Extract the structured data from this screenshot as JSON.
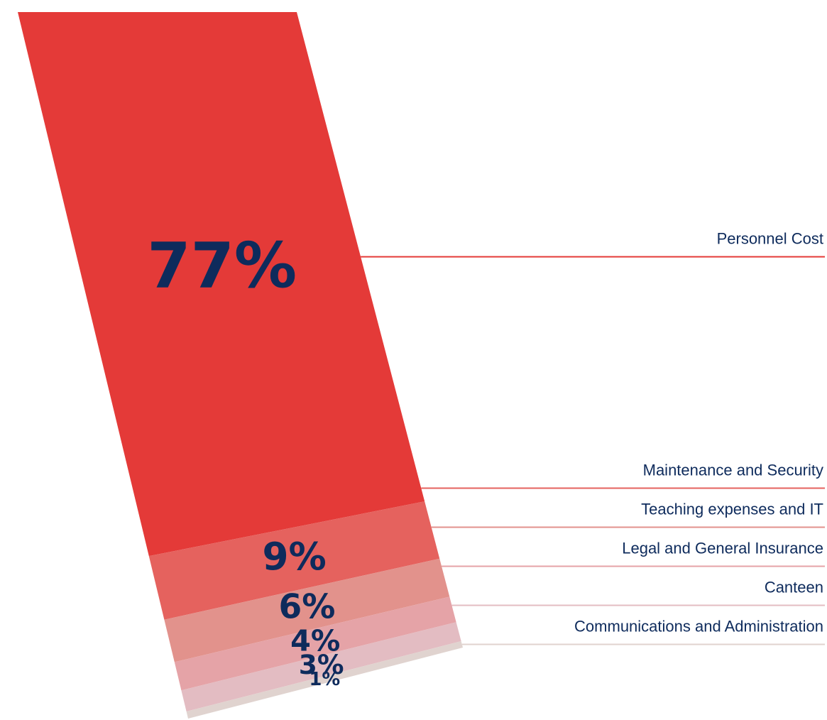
{
  "chart_data": {
    "type": "stacked-bar",
    "categories": [
      "Personnel Cost",
      "Maintenance and Security",
      "Teaching expenses and IT",
      "Legal and General Insurance",
      "Canteen",
      "Communications and Administration"
    ],
    "values": [
      77,
      9,
      6,
      4,
      3,
      1
    ],
    "value_labels": [
      "77%",
      "9%",
      "6%",
      "4%",
      "3%",
      "1%"
    ],
    "colors": [
      "#e43a38",
      "#e5625e",
      "#e2928c",
      "#e5a3a7",
      "#e3bcc2",
      "#e0d3cf"
    ]
  }
}
